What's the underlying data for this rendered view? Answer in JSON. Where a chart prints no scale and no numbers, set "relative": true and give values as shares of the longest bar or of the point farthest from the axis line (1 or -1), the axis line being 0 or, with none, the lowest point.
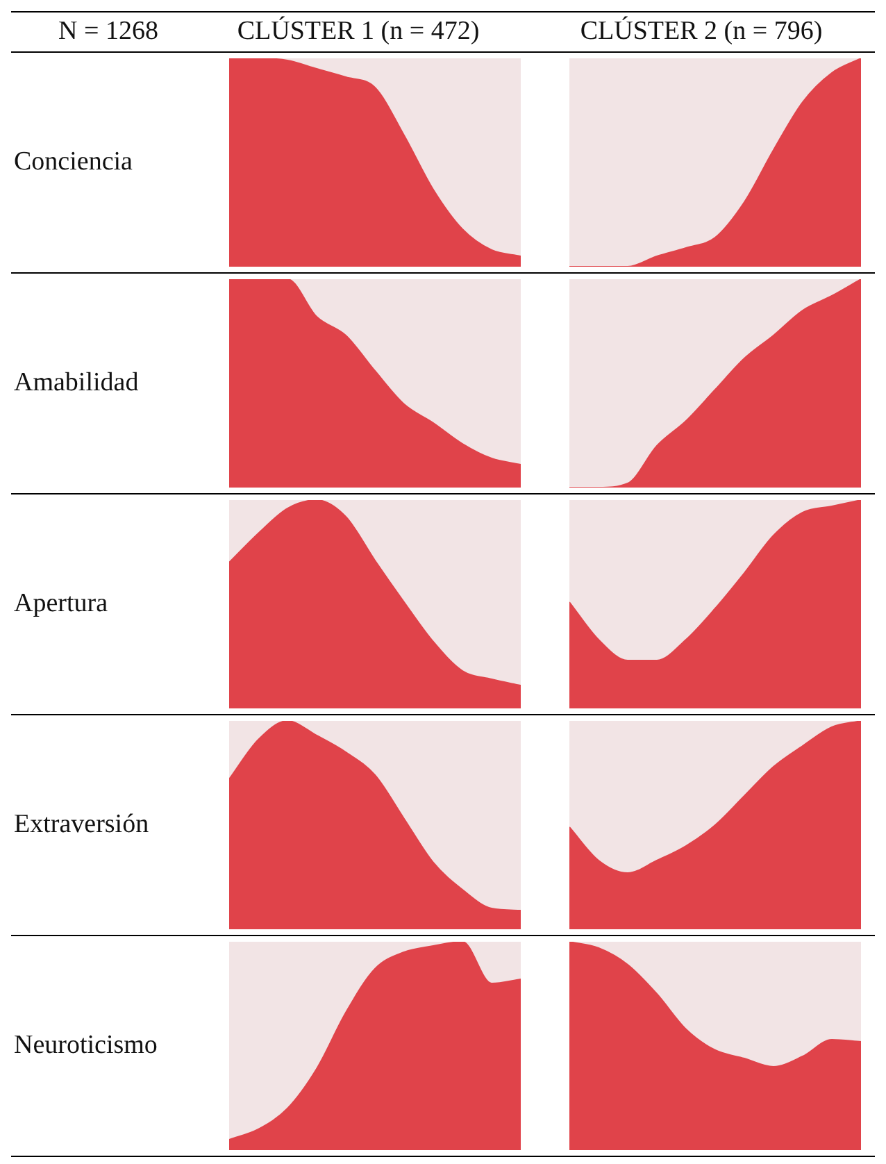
{
  "chart_data": [
    {
      "type": "area",
      "title": "CLÚSTER 1 (n = 472)",
      "ylabel": "Conciencia",
      "annotations": [
        "N = 1268"
      ],
      "relative": true,
      "color": "#e0434a",
      "categories": [
        null,
        null,
        null,
        null,
        null,
        null,
        null,
        null,
        null,
        null,
        null
      ],
      "values": [
        1,
        1,
        0.99,
        0.95,
        0.91,
        0.86,
        0.63,
        0.37,
        0.18,
        0.08,
        0.05
      ]
    },
    {
      "type": "area",
      "title": "CLÚSTER 2 (n = 796)",
      "relative": true,
      "color": "#e0434a",
      "categories": [
        null,
        null,
        null,
        null,
        null,
        null,
        null,
        null,
        null,
        null,
        null
      ],
      "values": [
        0,
        0,
        0,
        0.05,
        0.09,
        0.14,
        0.31,
        0.56,
        0.79,
        0.93,
        1
      ]
    },
    {
      "type": "area",
      "ylabel": "Amabilidad",
      "relative": true,
      "color": "#e0434a",
      "categories": [
        null,
        null,
        null,
        null,
        null,
        null,
        null,
        null,
        null,
        null,
        null
      ],
      "values": [
        1,
        1,
        1,
        0.82,
        0.73,
        0.56,
        0.4,
        0.31,
        0.21,
        0.14,
        0.11
      ]
    },
    {
      "type": "area",
      "relative": true,
      "color": "#e0434a",
      "categories": [
        null,
        null,
        null,
        null,
        null,
        null,
        null,
        null,
        null,
        null,
        null
      ],
      "values": [
        0,
        0,
        0.02,
        0.2,
        0.32,
        0.47,
        0.62,
        0.73,
        0.85,
        0.92,
        1
      ]
    },
    {
      "type": "area",
      "ylabel": "Apertura",
      "relative": true,
      "color": "#e0434a",
      "categories": [
        null,
        null,
        null,
        null,
        null,
        null,
        null,
        null,
        null,
        null,
        null
      ],
      "values": [
        0.7,
        0.84,
        0.96,
        1,
        0.92,
        0.71,
        0.51,
        0.32,
        0.18,
        0.14,
        0.11
      ]
    },
    {
      "type": "area",
      "relative": true,
      "color": "#e0434a",
      "categories": [
        null,
        null,
        null,
        null,
        null,
        null,
        null,
        null,
        null,
        null,
        null
      ],
      "values": [
        0.51,
        0.33,
        0.23,
        0.23,
        0.33,
        0.48,
        0.65,
        0.83,
        0.94,
        0.97,
        1
      ]
    },
    {
      "type": "area",
      "ylabel": "Extraversión",
      "relative": true,
      "color": "#e0434a",
      "categories": [
        null,
        null,
        null,
        null,
        null,
        null,
        null,
        null,
        null,
        null,
        null
      ],
      "values": [
        0.72,
        0.91,
        1,
        0.93,
        0.85,
        0.74,
        0.53,
        0.32,
        0.19,
        0.1,
        0.09
      ]
    },
    {
      "type": "area",
      "relative": true,
      "color": "#e0434a",
      "categories": [
        null,
        null,
        null,
        null,
        null,
        null,
        null,
        null,
        null,
        null,
        null
      ],
      "values": [
        0.49,
        0.33,
        0.27,
        0.33,
        0.4,
        0.5,
        0.64,
        0.78,
        0.88,
        0.97,
        1
      ]
    },
    {
      "type": "area",
      "ylabel": "Neuroticismo",
      "relative": true,
      "color": "#e0434a",
      "categories": [
        null,
        null,
        null,
        null,
        null,
        null,
        null,
        null,
        null,
        null,
        null
      ],
      "values": [
        0.05,
        0.1,
        0.2,
        0.39,
        0.66,
        0.87,
        0.95,
        0.98,
        1,
        0.8,
        0.82
      ]
    },
    {
      "type": "area",
      "relative": true,
      "color": "#e0434a",
      "categories": [
        null,
        null,
        null,
        null,
        null,
        null,
        null,
        null,
        null,
        null,
        null
      ],
      "values": [
        1,
        0.97,
        0.89,
        0.75,
        0.58,
        0.48,
        0.44,
        0.4,
        0.45,
        0.53,
        0.52
      ]
    }
  ]
}
